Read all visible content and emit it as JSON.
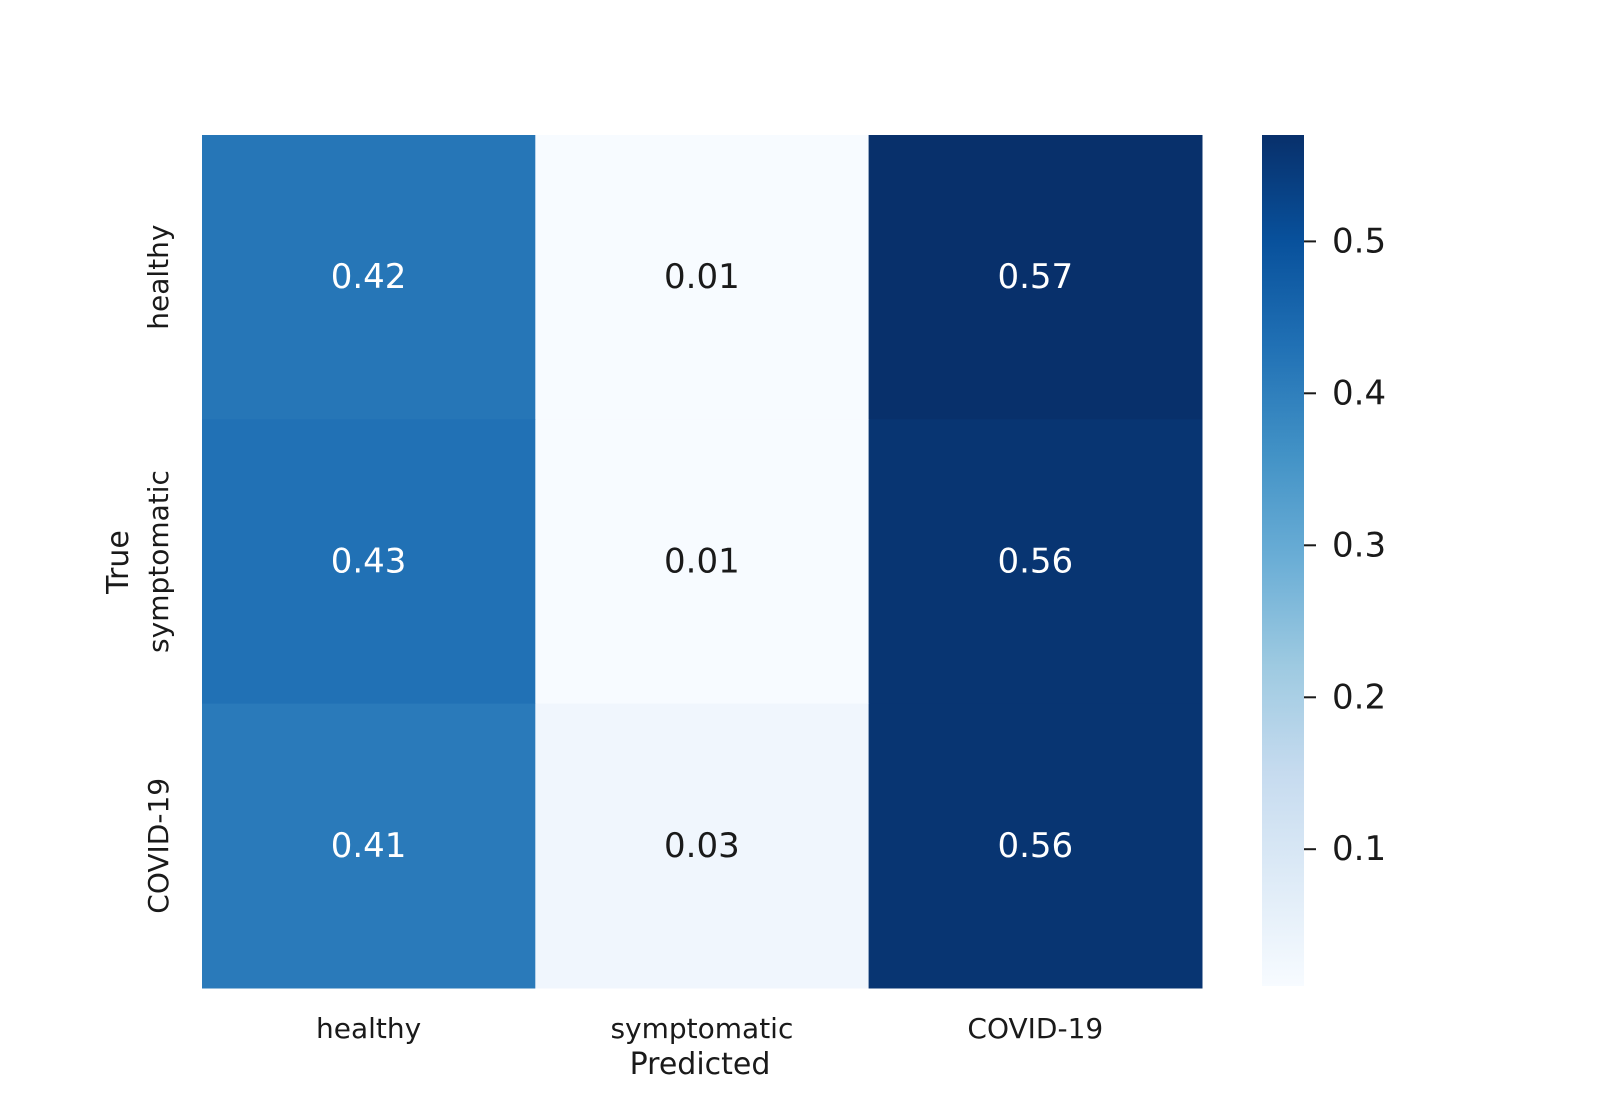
{
  "chart_data": {
    "type": "heatmap",
    "rows": [
      "healthy",
      "symptomatic",
      "COVID-19"
    ],
    "columns": [
      "healthy",
      "symptomatic",
      "COVID-19"
    ],
    "values": [
      [
        0.42,
        0.01,
        0.57
      ],
      [
        0.43,
        0.01,
        0.56
      ],
      [
        0.41,
        0.03,
        0.56
      ]
    ],
    "cell_labels": [
      [
        "0.42",
        "0.01",
        "0.57"
      ],
      [
        "0.43",
        "0.01",
        "0.56"
      ],
      [
        "0.41",
        "0.03",
        "0.56"
      ]
    ],
    "xlabel": "Predicted",
    "ylabel": "True",
    "colormap": "Blues",
    "colorbar": {
      "vmin": 0.01,
      "vmax": 0.57,
      "ticks": [
        0.1,
        0.2,
        0.3,
        0.4,
        0.5
      ],
      "tick_labels": [
        "0.1",
        "0.2",
        "0.3",
        "0.4",
        "0.5"
      ]
    }
  }
}
